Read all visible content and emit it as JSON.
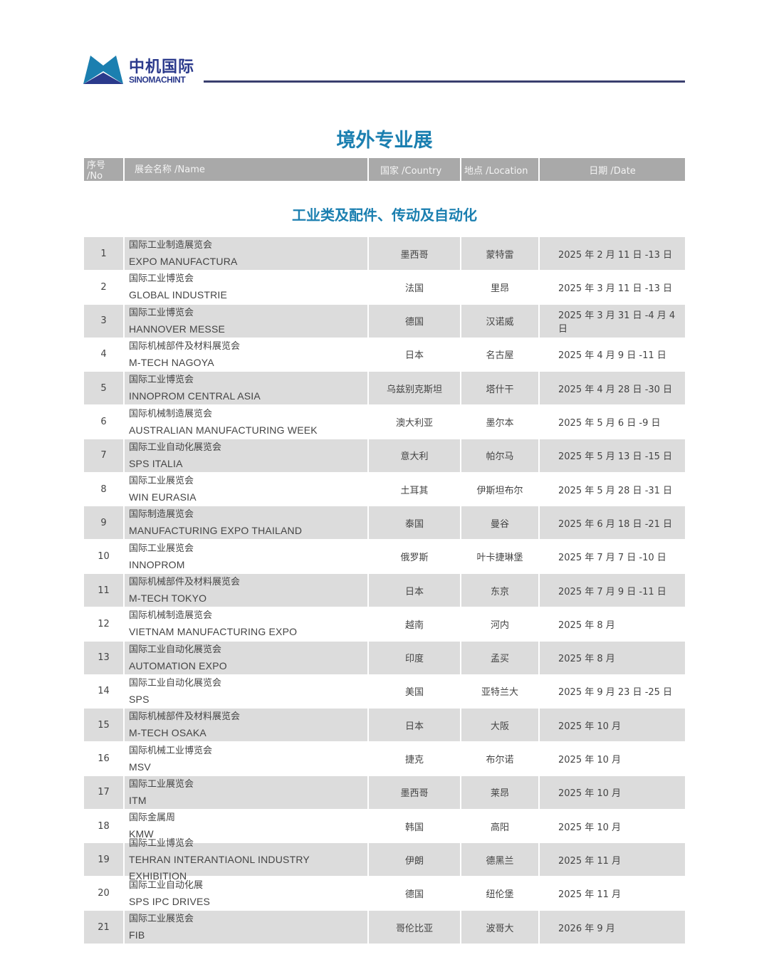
{
  "logo": {
    "cn": "中机国际",
    "en": "SINOMACHINT",
    "color": "#2b3a8c"
  },
  "title": "境外专业展",
  "header": {
    "no": "序号 /No",
    "name": "展会名称 /Name",
    "country": "国家 /Country",
    "location": "地点 /Location",
    "date": "日期 /Date"
  },
  "section": "工业类及配件、传动及自动化",
  "rows": [
    {
      "no": "1",
      "cn": "国际工业制造展览会",
      "en": "EXPO MANUFACTURA",
      "country": "墨西哥",
      "location": "蒙特雷",
      "date": "2025 年 2 月 11 日 -13 日"
    },
    {
      "no": "2",
      "cn": "国际工业博览会",
      "en": "GLOBAL INDUSTRIE",
      "country": "法国",
      "location": "里昂",
      "date": "2025 年 3 月 11 日 -13 日"
    },
    {
      "no": "3",
      "cn": "国际工业博览会",
      "en": "HANNOVER MESSE",
      "country": "德国",
      "location": "汉诺威",
      "date": "2025 年 3 月 31 日 -4 月 4 日"
    },
    {
      "no": "4",
      "cn": "国际机械部件及材料展览会",
      "en": "M-TECH NAGOYA",
      "country": "日本",
      "location": "名古屋",
      "date": "2025 年 4 月 9 日 -11 日"
    },
    {
      "no": "5",
      "cn": "国际工业博览会",
      "en": "INNOPROM  CENTRAL ASIA",
      "country": "乌兹别克斯坦",
      "location": "塔什干",
      "date": "2025 年 4 月 28 日 -30 日"
    },
    {
      "no": "6",
      "cn": "国际机械制造展览会",
      "en": "AUSTRALIAN MANUFACTURING WEEK",
      "country": "澳大利亚",
      "location": "墨尔本",
      "date": "2025 年 5 月 6 日 -9 日"
    },
    {
      "no": "7",
      "cn": "国际工业自动化展览会",
      "en": "SPS ITALIA",
      "country": "意大利",
      "location": "帕尔马",
      "date": "2025 年 5 月 13 日 -15 日"
    },
    {
      "no": "8",
      "cn": "国际工业展览会",
      "en": "WIN EURASIA",
      "country": "土耳其",
      "location": "伊斯坦布尔",
      "date": "2025 年 5 月 28 日 -31 日"
    },
    {
      "no": "9",
      "cn": "国际制造展览会",
      "en": "MANUFACTURING EXPO THAILAND",
      "country": "泰国",
      "location": "曼谷",
      "date": "2025 年 6 月 18 日 -21 日"
    },
    {
      "no": "10",
      "cn": "国际工业展览会",
      "en": "INNOPROM",
      "country": "俄罗斯",
      "location": "叶卡捷琳堡",
      "date": "2025 年 7 月 7 日 -10 日"
    },
    {
      "no": "11",
      "cn": "国际机械部件及材料展览会",
      "en": "M-TECH TOKYO",
      "country": "日本",
      "location": "东京",
      "date": "2025 年 7 月 9 日 -11 日"
    },
    {
      "no": "12",
      "cn": "国际机械制造展览会",
      "en": "VIETNAM MANUFACTURING EXPO",
      "country": "越南",
      "location": "河内",
      "date": "2025 年 8 月"
    },
    {
      "no": "13",
      "cn": "国际工业自动化展览会",
      "en": "AUTOMATION EXPO",
      "country": "印度",
      "location": "孟买",
      "date": "2025 年 8 月"
    },
    {
      "no": "14",
      "cn": "国际工业自动化展览会",
      "en": "SPS",
      "country": "美国",
      "location": "亚特兰大",
      "date": "2025 年 9 月 23 日 -25 日"
    },
    {
      "no": "15",
      "cn": "国际机械部件及材料展览会",
      "en": "M-TECH OSAKA",
      "country": "日本",
      "location": "大阪",
      "date": "2025 年 10 月"
    },
    {
      "no": "16",
      "cn": "国际机械工业博览会",
      "en": "MSV",
      "country": "捷克",
      "location": "布尔诺",
      "date": "2025 年 10 月"
    },
    {
      "no": "17",
      "cn": "国际工业展览会",
      "en": "ITM",
      "country": "墨西哥",
      "location": "莱昂",
      "date": "2025 年 10 月"
    },
    {
      "no": "18",
      "cn": "国际金属周",
      "en": "KMW",
      "country": "韩国",
      "location": "高阳",
      "date": "2025 年 10 月"
    },
    {
      "no": "19",
      "cn": "国际工业博览会",
      "en": "TEHRAN INTERANTIAONL INDUSTRY EXHIBITION",
      "country": "伊朗",
      "location": "德黑兰",
      "date": "2025 年 11 月"
    },
    {
      "no": "20",
      "cn": "国际工业自动化展",
      "en": "SPS IPC DRIVES",
      "country": "德国",
      "location": "纽伦堡",
      "date": "2025 年 11 月"
    },
    {
      "no": "21",
      "cn": "国际工业展览会",
      "en": "FIB",
      "country": "哥伦比亚",
      "location": "波哥大",
      "date": "2026 年 9 月"
    }
  ],
  "colors": {
    "title": "#1b7fb0",
    "header_bg": "#a9a9a9",
    "row_alt": "#dcdcdc"
  }
}
